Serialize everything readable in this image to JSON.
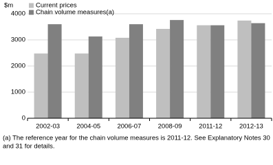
{
  "chart_data": {
    "type": "bar",
    "y_label": "$m",
    "categories": [
      "2002-03",
      "2004-05",
      "2006-07",
      "2008-09",
      "2011-12",
      "2012-13"
    ],
    "series": [
      {
        "name": "Current prices",
        "color": "#bfbfbf",
        "values": [
          2480,
          2480,
          3080,
          3420,
          3560,
          3740
        ]
      },
      {
        "name": "Chain volume measures(a)",
        "color": "#808080",
        "values": [
          3600,
          3130,
          3600,
          3760,
          3560,
          3640
        ]
      }
    ],
    "ylim": [
      0,
      4000
    ],
    "yticks": [
      0,
      1000,
      2000,
      3000,
      4000
    ],
    "grid": true,
    "footnote": [
      "(a) The reference year for the chain volume measures is 2011-12. See Explanatory Notes 30",
      "and 31 for details."
    ]
  }
}
